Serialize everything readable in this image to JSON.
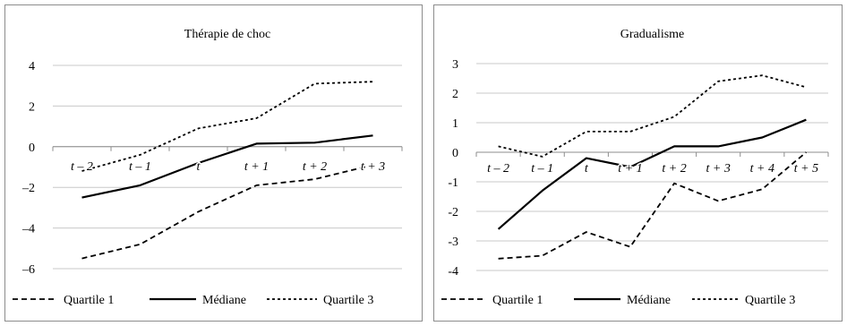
{
  "chart_data": [
    {
      "type": "line",
      "title": "Thérapie de choc",
      "categories": [
        "t – 2",
        "t – 1",
        "t",
        "t + 1",
        "t + 2",
        "t + 3"
      ],
      "ylim": [
        -6,
        4
      ],
      "yticks": [
        4,
        2,
        0,
        -2,
        -4,
        -6
      ],
      "ytick_labels": [
        "4",
        "2",
        "0",
        "–2",
        "–4",
        "–6"
      ],
      "grid": true,
      "legend_position": "bottom",
      "series": [
        {
          "name": "Quartile 1",
          "style": "dashed",
          "values": [
            -5.5,
            -4.8,
            -3.2,
            -1.9,
            -1.6,
            -0.9
          ]
        },
        {
          "name": "Médiane",
          "style": "solid",
          "values": [
            -2.5,
            -1.9,
            -0.8,
            0.15,
            0.2,
            0.55
          ]
        },
        {
          "name": "Quartile 3",
          "style": "dotted",
          "values": [
            -1.2,
            -0.4,
            0.9,
            1.4,
            3.1,
            3.2
          ]
        }
      ]
    },
    {
      "type": "line",
      "title": "Gradualisme",
      "categories": [
        "t – 2",
        "t – 1",
        "t",
        "t + 1",
        "t + 2",
        "t + 3",
        "t + 4",
        "t + 5"
      ],
      "ylim": [
        -4,
        3
      ],
      "yticks": [
        3,
        2,
        1,
        0,
        -1,
        -2,
        -3,
        -4
      ],
      "ytick_labels": [
        "3",
        "2",
        "1",
        "0",
        "-1",
        "-2",
        "-3",
        "-4"
      ],
      "grid": true,
      "legend_position": "bottom",
      "series": [
        {
          "name": "Quartile 1",
          "style": "dashed",
          "values": [
            -3.6,
            -3.5,
            -2.7,
            -3.2,
            -1.05,
            -1.65,
            -1.25,
            0.0
          ]
        },
        {
          "name": "Médiane",
          "style": "solid",
          "values": [
            -2.6,
            -1.3,
            -0.2,
            -0.5,
            0.2,
            0.2,
            0.5,
            1.1
          ]
        },
        {
          "name": "Quartile 3",
          "style": "dotted",
          "values": [
            0.2,
            -0.15,
            0.7,
            0.7,
            1.2,
            2.4,
            2.6,
            2.2
          ]
        }
      ]
    }
  ]
}
